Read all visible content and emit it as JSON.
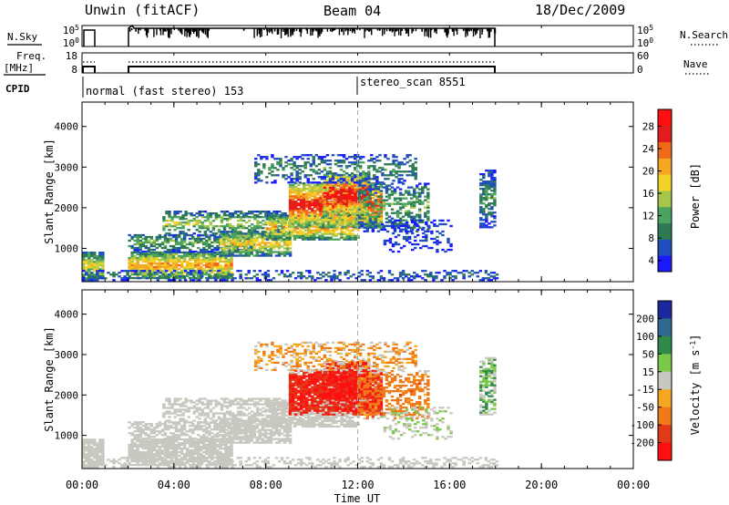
{
  "chart_data": {
    "type": "heatmap",
    "header": {
      "station": "Unwin (fitACF)",
      "beam": "Beam 04",
      "date": "18/Dec/2009"
    },
    "top_panels": {
      "nsky": {
        "left_label": "N.Sky",
        "right_label": "N.Search",
        "tick_top": "10^5",
        "tick_bottom": "10^0"
      },
      "freq": {
        "left_label": "Freq.",
        "left_unit": "[MHz]",
        "tick_top_left": "18",
        "tick_bottom_left": "8",
        "right_label": "Nave",
        "tick_top_right": "60",
        "tick_bottom_right": "0"
      },
      "cpid": {
        "label": "CPID",
        "segments": [
          {
            "start_hour": 0.0,
            "label": "normal (fast stereo) 153"
          },
          {
            "start_hour": 12.0,
            "label": "stereo_scan 8551"
          }
        ]
      }
    },
    "x_axis": {
      "label": "Time UT",
      "range_hours": [
        0,
        24
      ],
      "tick_hours": [
        0,
        4,
        8,
        12,
        16,
        20,
        24
      ],
      "tick_labels": [
        "00:00",
        "04:00",
        "08:00",
        "12:00",
        "16:00",
        "20:00",
        "00:00"
      ]
    },
    "panels": [
      {
        "name": "power",
        "ylabel": "Slant Range [km]",
        "yticks": [
          1000,
          2000,
          3000,
          4000
        ],
        "ylim": [
          180,
          4600
        ],
        "colorbar": {
          "label": "Power [dB]",
          "ticks": [
            "4",
            "8",
            "12",
            "16",
            "20",
            "24",
            "28"
          ],
          "tick_values": [
            4,
            8,
            12,
            16,
            20,
            24,
            28
          ],
          "range": [
            2,
            31
          ],
          "colors": [
            "#1a1aff",
            "#1f4fbf",
            "#2e7a55",
            "#4aa35f",
            "#a6c64a",
            "#f2d32a",
            "#f5a623",
            "#f06a1a",
            "#e21d1d",
            "#ff1010"
          ]
        },
        "data_summary": "backscatter mostly between 200 and 3300 km from 00:00 to 18:00 UT; strongest (24-30 dB) near 1500-2500 km at 10:30-12:30 UT"
      },
      {
        "name": "velocity",
        "ylabel": "Slant Range [km]",
        "yticks": [
          1000,
          2000,
          3000,
          4000
        ],
        "ylim": [
          180,
          4600
        ],
        "colorbar": {
          "label": "Velocity [m s^-1]",
          "ticks": [
            "200",
            "100",
            "50",
            "15",
            "-15",
            "-50",
            "-100",
            "-200"
          ],
          "tick_values": [
            200,
            100,
            50,
            15,
            -15,
            -50,
            -100,
            -200
          ],
          "colors": [
            "#1a2a9e",
            "#2e6a8e",
            "#2f8a4a",
            "#7cc84a",
            "#c8c8c0",
            "#f5a623",
            "#f07a1a",
            "#e03a1a",
            "#ff1010"
          ]
        },
        "data_summary": "ground scatter (grey, -15 to 15) at 200-1600 km; strong negative velocity (-100 to -250) at 1500-2600 km from 09:00 to 13:00 UT"
      }
    ],
    "colors": {
      "dashed_marker": "#aaaaaa"
    },
    "marker_hour": 12.0
  }
}
